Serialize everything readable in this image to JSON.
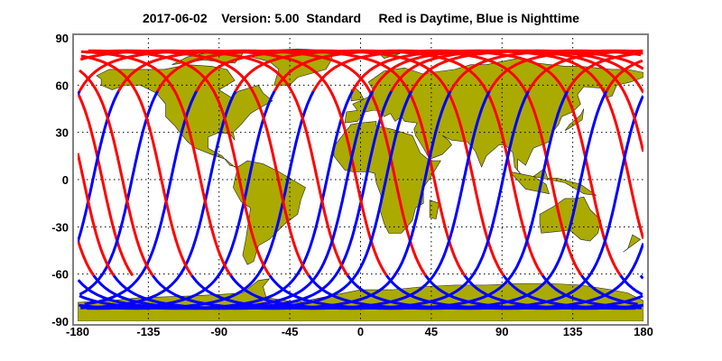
{
  "title": "2017-06-02    Version: 5.00  Standard     Red is Daytime, Blue is Nighttime",
  "chart_data": {
    "type": "map",
    "projection": "equirectangular",
    "title": "2017-06-02    Version: 5.00  Standard     Red is Daytime, Blue is Nighttime",
    "xlim": [
      -180,
      180
    ],
    "ylim": [
      -90,
      90
    ],
    "x_ticks": [
      "-180",
      "-135",
      "-90",
      "-45",
      "0",
      "45",
      "90",
      "135",
      "180"
    ],
    "y_ticks": [
      "90",
      "60",
      "30",
      "0",
      "-30",
      "-60",
      "-90"
    ],
    "grid": true,
    "orbit_tracks": {
      "description_colors": {
        "day": "#ff0000",
        "night": "#0000ff"
      },
      "max_latitude": 81.8,
      "orbits_shown": 15
    }
  },
  "colors": {
    "land": "#aaaa00",
    "day": "#ff0000",
    "night": "#0000ff",
    "frame": "#808080"
  }
}
